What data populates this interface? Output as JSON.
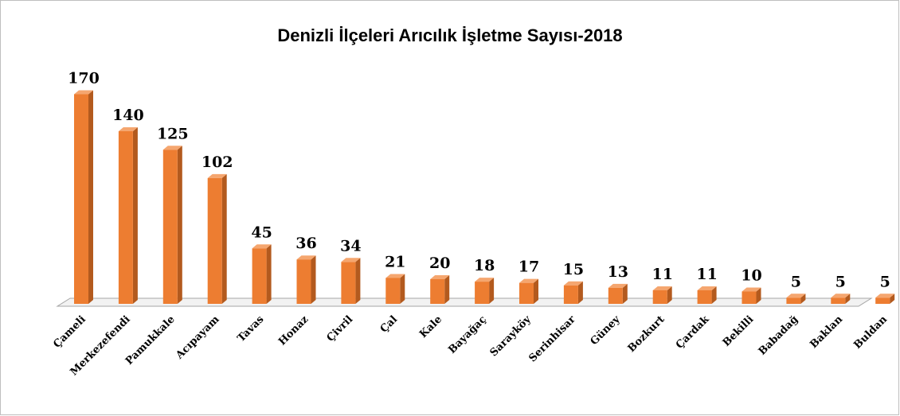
{
  "chart_data": {
    "type": "bar3d",
    "title": "Denizli İlçeleri Arıcılık İşletme Sayısı-2018",
    "categories": [
      "Çameli",
      "Merkezefendi",
      "Pamukkale",
      "Acıpayam",
      "Tavas",
      "Honaz",
      "Çivril",
      "Çal",
      "Kale",
      "Bayağaç",
      "Sarayköy",
      "Serinhisar",
      "Güney",
      "Bozkurt",
      "Çardak",
      "Bekilli",
      "Babadağ",
      "Baklan",
      "Buldan"
    ],
    "values": [
      170,
      140,
      125,
      102,
      45,
      36,
      34,
      21,
      20,
      18,
      17,
      15,
      13,
      11,
      11,
      10,
      5,
      5,
      5
    ],
    "color": "#ed7d31"
  }
}
